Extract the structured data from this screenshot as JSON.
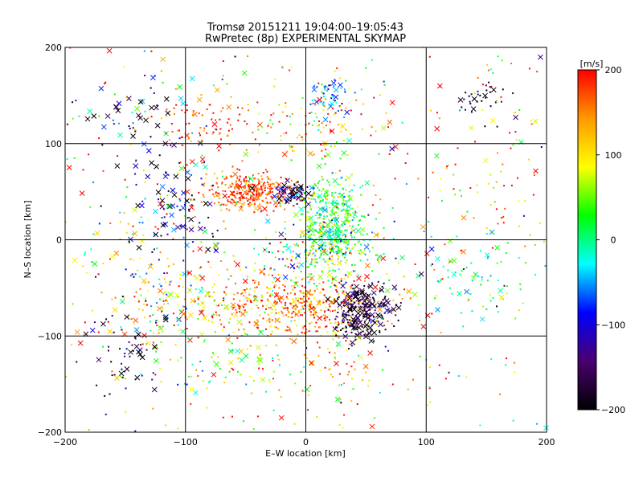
{
  "chart_data": {
    "type": "scatter",
    "title": "Tromsø 20151211 19:04:00–19:05:43",
    "subtitle": "RwPretec (8p) EXPERIMENTAL SKYMAP",
    "xlabel": "E–W location [km]",
    "ylabel": "N–S location [km]",
    "xlim": [
      -200,
      200
    ],
    "ylim": [
      -200,
      200
    ],
    "xticks": [
      "−200",
      "−100",
      "0",
      "100",
      "200"
    ],
    "yticks": [
      "−200",
      "−100",
      "0",
      "100",
      "200"
    ],
    "xtick_values": [
      -200,
      -100,
      0,
      100,
      200
    ],
    "ytick_values": [
      -200,
      -100,
      0,
      100,
      200
    ],
    "grid": true,
    "markers": [
      "dot",
      "cross"
    ],
    "colorbar": {
      "label": "[m/s]",
      "range": [
        -200,
        200
      ],
      "tick_values": [
        -200,
        -100,
        0,
        100,
        200
      ],
      "tick_labels": [
        "−200",
        "−100",
        "0",
        "100",
        "200"
      ],
      "colors": [
        "#000000",
        "#4b0070",
        "#0000ff",
        "#00ffff",
        "#00ff00",
        "#ffff00",
        "#ff9900",
        "#ff0000"
      ]
    },
    "clusters": [
      {
        "x": -45,
        "y": 50,
        "sx": 18,
        "sy": 10,
        "v_mean": 175,
        "v_sd": 30,
        "n": 320,
        "cross_frac": 0.05
      },
      {
        "x": -10,
        "y": 48,
        "sx": 8,
        "sy": 6,
        "v_mean": -150,
        "v_sd": 60,
        "n": 70,
        "cross_frac": 0.35
      },
      {
        "x": 22,
        "y": 20,
        "sx": 14,
        "sy": 22,
        "v_mean": 20,
        "v_sd": 45,
        "n": 360,
        "cross_frac": 0.15
      },
      {
        "x": 12,
        "y": -15,
        "sx": 25,
        "sy": 15,
        "v_mean": 15,
        "v_sd": 90,
        "n": 220,
        "cross_frac": 0.12
      },
      {
        "x": -10,
        "y": -68,
        "sx": 40,
        "sy": 16,
        "v_mean": 150,
        "v_sd": 50,
        "n": 460,
        "cross_frac": 0.08
      },
      {
        "x": 48,
        "y": -68,
        "sx": 13,
        "sy": 10,
        "v_mean": -175,
        "v_sd": 30,
        "n": 170,
        "cross_frac": 0.35
      },
      {
        "x": 45,
        "y": -92,
        "sx": 10,
        "sy": 7,
        "v_mean": -180,
        "v_sd": 25,
        "n": 60,
        "cross_frac": 0.35
      },
      {
        "x": -105,
        "y": 40,
        "sx": 20,
        "sy": 35,
        "v_mean": -150,
        "v_sd": 80,
        "n": 90,
        "cross_frac": 0.4
      },
      {
        "x": -145,
        "y": 130,
        "sx": 25,
        "sy": 20,
        "v_mean": -120,
        "v_sd": 90,
        "n": 55,
        "cross_frac": 0.55
      },
      {
        "x": 20,
        "y": 150,
        "sx": 10,
        "sy": 10,
        "v_mean": -60,
        "v_sd": 40,
        "n": 55,
        "cross_frac": 0.1
      },
      {
        "x": 150,
        "y": 150,
        "sx": 15,
        "sy": 12,
        "v_mean": -190,
        "v_sd": 30,
        "n": 35,
        "cross_frac": 0.25
      },
      {
        "x": -85,
        "y": 120,
        "sx": 20,
        "sy": 20,
        "v_mean": 175,
        "v_sd": 35,
        "n": 80,
        "cross_frac": 0.1
      },
      {
        "x": 5,
        "y": 120,
        "sx": 35,
        "sy": 20,
        "v_mean": 130,
        "v_sd": 70,
        "n": 110,
        "cross_frac": 0.05
      },
      {
        "x": -115,
        "y": -65,
        "sx": 25,
        "sy": 25,
        "v_mean": 80,
        "v_sd": 110,
        "n": 140,
        "cross_frac": 0.25
      },
      {
        "x": -150,
        "y": -110,
        "sx": 15,
        "sy": 30,
        "v_mean": -170,
        "v_sd": 40,
        "n": 60,
        "cross_frac": 0.3
      },
      {
        "x": 140,
        "y": -40,
        "sx": 25,
        "sy": 25,
        "v_mean": 10,
        "v_sd": 40,
        "n": 70,
        "cross_frac": 0.25
      },
      {
        "x": -70,
        "y": -125,
        "sx": 30,
        "sy": 20,
        "v_mean": 60,
        "v_sd": 60,
        "n": 80,
        "cross_frac": 0.15
      },
      {
        "x": 30,
        "y": -130,
        "sx": 35,
        "sy": 30,
        "v_mean": 120,
        "v_sd": 70,
        "n": 80,
        "cross_frac": 0.1
      },
      {
        "x": 150,
        "y": 70,
        "sx": 30,
        "sy": 40,
        "v_mean": 140,
        "v_sd": 70,
        "n": 50,
        "cross_frac": 0.05
      },
      {
        "x": -120,
        "y": 10,
        "sx": 30,
        "sy": 25,
        "v_mean": 100,
        "v_sd": 100,
        "n": 60,
        "cross_frac": 0.2
      }
    ],
    "background": {
      "n": 360,
      "v_mean": 100,
      "v_sd": 120,
      "cross_frac": 0.15
    }
  }
}
